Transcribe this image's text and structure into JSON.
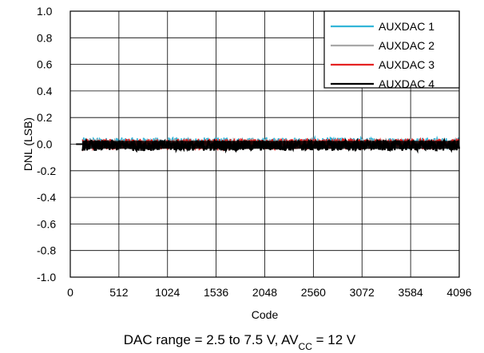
{
  "chart_data": {
    "type": "line",
    "title": "",
    "xlabel": "Code",
    "ylabel": "DNL (LSB)",
    "xlim": [
      0,
      4096
    ],
    "ylim": [
      -1.0,
      1.0
    ],
    "x_ticks": [
      0,
      512,
      1024,
      1536,
      2048,
      2560,
      3072,
      3584,
      4096
    ],
    "y_ticks": [
      1.0,
      0.8,
      0.6,
      0.4,
      0.2,
      0.0,
      -0.2,
      -0.4,
      -0.6,
      -0.8,
      -1.0
    ],
    "x_tick_labels": [
      "0",
      "512",
      "1024",
      "1536",
      "2048",
      "2560",
      "3072",
      "3584",
      "4096"
    ],
    "y_tick_labels": [
      "1.0",
      "0.8",
      "0.6",
      "0.4",
      "0.2",
      "0.0",
      "-0.2",
      "-0.4",
      "-0.6",
      "-0.8",
      "-1.0"
    ],
    "grid": true,
    "legend_position": "top-right",
    "data_start_code": 128,
    "series": [
      {
        "name": "AUXDAC 1",
        "color": "#33b5d8",
        "dnl_min": -0.03,
        "dnl_max": 0.05
      },
      {
        "name": "AUXDAC 2",
        "color": "#a8a8a8",
        "dnl_min": -0.04,
        "dnl_max": 0.04
      },
      {
        "name": "AUXDAC 3",
        "color": "#e52222",
        "dnl_min": -0.04,
        "dnl_max": 0.04
      },
      {
        "name": "AUXDAC 4",
        "color": "#000000",
        "dnl_min": -0.05,
        "dnl_max": 0.03
      }
    ],
    "caption_parts": [
      "DAC range = 2.5 to 7.5 V, AV",
      "CC",
      " = 12 V"
    ]
  }
}
